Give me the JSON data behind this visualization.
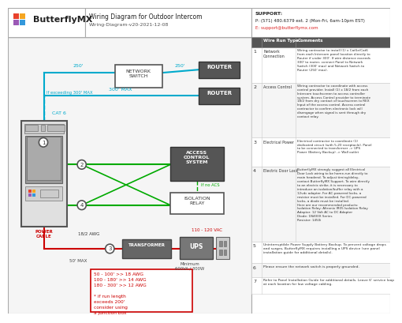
{
  "title": "Wiring Diagram for Outdoor Intercom",
  "subtitle": "Wiring-Diagram-v20-2021-12-08",
  "logo_text": "ButterflyMX",
  "support_label": "SUPPORT:",
  "support_phone": "P: (571) 480.6379 ext. 2 (Mon-Fri, 6am-10pm EST)",
  "support_email": "E: support@butterflymx.com",
  "bg_color": "#ffffff",
  "cyan": "#00aacc",
  "green": "#00aa00",
  "red": "#cc0000",
  "dark": "#444444",
  "router_bg": "#555555",
  "acs_bg": "#555555",
  "trans_bg": "#666666",
  "ups_bg": "#777777",
  "table_header_bg": "#555555",
  "row1_comments": "Wiring contractor to install (1) x Cat5e/Cat6\nfrom each Intercom panel location directly to\nRouter if under 300'. If wire distance exceeds\n300' to router, connect Panel to Network\nSwitch (300' max) and Network Switch to\nRouter (250' max).",
  "row2_comments": "Wiring contractor to coordinate with access\ncontrol provider. Install (1) x 18/2 from each\nIntercom touchscreen to access controller\nsystem. Access Control provider to terminate\n18/2 from dry contact of touchscreen to REX\nInput of the access control. Access control\ncontractor to confirm electronic lock will\ndisengage when signal is sent through dry\ncontact relay.",
  "row3_comments": "Electrical contractor to coordinate (1)\ndedicated circuit (with 5-20 receptacle). Panel\nto be connected to transformer -> UPS\nPower (Battery Backup) -> Wall outlet",
  "row4_comments": "ButterflyMX strongly suggest all Electrical\nDoor Lock wiring to be home-run directly to\nmain headend. To adjust timing/delay,\ncontact ButterflyMX Support. To wire directly\nto an electric strike, it is necessary to\nintroduce an isolation/buffer relay with a\n12vdc adapter. For AC-powered locks, a\nresistor must be installed. For DC-powered\nlocks, a diode must be installed.\nHere are our recommended products:\nIsolation Relay: Altronix IR05 Isolation Relay\nAdaptor: 12 Volt AC to DC Adapter\nDiode: 1N400X Series\nResistor: 1450i",
  "row5_text": "Uninterruptible Power Supply Battery Backup. To prevent voltage drops\nand surges, ButterflyMX requires installing a UPS device (see panel\ninstallation guide for additional details).",
  "row6_text": "Please ensure the network switch is properly grounded.",
  "row7_text": "Refer to Panel Installation Guide for additional details. Leave 6' service loop\nat each location for low voltage cabling.",
  "awg_text": "50 - 100' >> 18 AWG\n100 - 180' >> 14 AWG\n180 - 300' >> 12 AWG\n\n* if run length\nexceeds 200'\nconsider using\na junction box"
}
